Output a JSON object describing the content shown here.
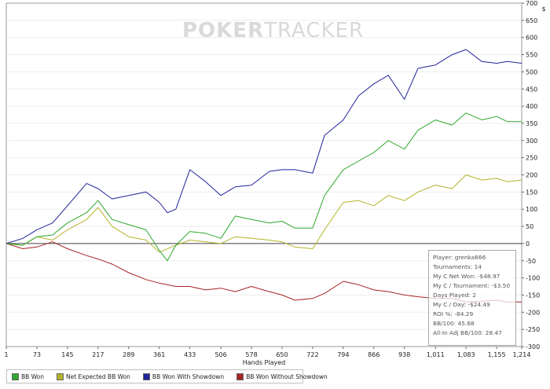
{
  "chart_data": {
    "type": "line",
    "watermark": {
      "bold": "POKER",
      "light": "TRACKER"
    },
    "xlabel": "Hands Played",
    "ylabel": "$",
    "xlim": [
      1,
      1214
    ],
    "ylim": [
      -300,
      700
    ],
    "x_ticks": [
      "1",
      "73",
      "145",
      "217",
      "289",
      "361",
      "433",
      "506",
      "578",
      "650",
      "722",
      "794",
      "866",
      "938",
      "1,011",
      "1,083",
      "1,155",
      "1,214"
    ],
    "x_tick_values": [
      1,
      73,
      145,
      217,
      289,
      361,
      433,
      506,
      578,
      650,
      722,
      794,
      866,
      938,
      1011,
      1083,
      1155,
      1214
    ],
    "y_ticks": [
      "700",
      "650",
      "600",
      "550",
      "500",
      "450",
      "400",
      "350",
      "300",
      "250",
      "200",
      "150",
      "100",
      "50",
      "0",
      "-50",
      "-100",
      "-150",
      "-200",
      "-250",
      "-300"
    ],
    "y_tick_values": [
      700,
      650,
      600,
      550,
      500,
      450,
      400,
      350,
      300,
      250,
      200,
      150,
      100,
      50,
      0,
      -50,
      -100,
      -150,
      -200,
      -250,
      -300
    ],
    "series": [
      {
        "name": "BB Won",
        "color": "#2ea82e",
        "x": [
          1,
          40,
          73,
          110,
          145,
          190,
          217,
          250,
          289,
          330,
          361,
          380,
          400,
          433,
          470,
          506,
          540,
          578,
          620,
          650,
          680,
          722,
          750,
          794,
          830,
          866,
          900,
          938,
          970,
          1011,
          1050,
          1083,
          1120,
          1155,
          1180,
          1214
        ],
        "y": [
          0,
          -5,
          20,
          25,
          60,
          90,
          125,
          70,
          55,
          40,
          -20,
          -50,
          -5,
          35,
          30,
          15,
          80,
          70,
          60,
          65,
          45,
          45,
          140,
          215,
          240,
          265,
          300,
          275,
          330,
          360,
          345,
          380,
          360,
          370,
          355,
          355
        ]
      },
      {
        "name": "Net Expected BB Won",
        "color": "#b3b32a",
        "x": [
          1,
          40,
          73,
          110,
          145,
          190,
          217,
          250,
          289,
          330,
          361,
          400,
          433,
          470,
          506,
          540,
          578,
          620,
          650,
          680,
          722,
          750,
          794,
          830,
          866,
          900,
          938,
          970,
          1011,
          1050,
          1083,
          1120,
          1155,
          1180,
          1214
        ],
        "y": [
          0,
          -5,
          20,
          10,
          40,
          70,
          105,
          50,
          20,
          10,
          -25,
          -5,
          10,
          5,
          0,
          20,
          15,
          10,
          5,
          -10,
          -15,
          40,
          120,
          125,
          110,
          140,
          125,
          150,
          170,
          160,
          200,
          185,
          190,
          180,
          185
        ]
      },
      {
        "name": "BB Won With Showdown",
        "color": "#22229a",
        "x": [
          1,
          40,
          73,
          110,
          145,
          190,
          217,
          250,
          289,
          330,
          361,
          380,
          400,
          433,
          470,
          506,
          540,
          578,
          620,
          650,
          680,
          722,
          750,
          794,
          830,
          866,
          900,
          938,
          970,
          1011,
          1050,
          1083,
          1120,
          1155,
          1180,
          1214
        ],
        "y": [
          0,
          15,
          40,
          60,
          110,
          175,
          160,
          130,
          140,
          150,
          120,
          90,
          100,
          215,
          180,
          140,
          165,
          170,
          210,
          215,
          215,
          205,
          315,
          360,
          430,
          465,
          490,
          420,
          510,
          520,
          550,
          565,
          530,
          525,
          530,
          525
        ]
      },
      {
        "name": "BB Won Without Showdown",
        "color": "#a82424",
        "x": [
          1,
          40,
          73,
          110,
          145,
          190,
          217,
          250,
          289,
          330,
          361,
          400,
          433,
          470,
          506,
          540,
          578,
          620,
          650,
          680,
          722,
          750,
          794,
          830,
          866,
          900,
          938,
          970,
          1011,
          1050,
          1083,
          1120,
          1155,
          1180,
          1214
        ],
        "y": [
          0,
          -15,
          -10,
          5,
          -15,
          -35,
          -45,
          -60,
          -85,
          -105,
          -115,
          -125,
          -125,
          -135,
          -130,
          -140,
          -125,
          -140,
          -150,
          -165,
          -160,
          -145,
          -110,
          -120,
          -135,
          -140,
          -150,
          -155,
          -160,
          -160,
          -170,
          -168,
          -165,
          -170,
          -170
        ]
      }
    ]
  },
  "stats": {
    "player": "Player: grenka666",
    "tournaments": "Tournaments: 14",
    "net_won": "My C Net Won: -$48.97",
    "per_tournament": "My C / Tournament: -$3.50",
    "days_played": "Days Played: 2",
    "per_day": "My C / Day: -$24.49",
    "roi": "ROI %: -84.29",
    "bb_100": "BB/100: 45.68",
    "allin_adj": "All-In Adj BB/100: 28.47"
  }
}
